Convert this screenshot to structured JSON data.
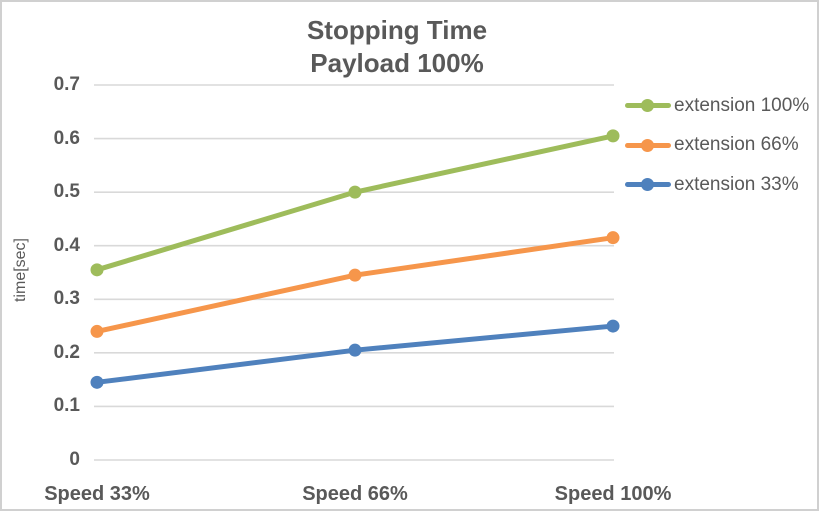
{
  "chart_data": {
    "type": "line",
    "title": "Stopping Time",
    "subtitle": "Payload 100%",
    "xlabel": "",
    "ylabel": "time[sec]",
    "categories": [
      "Speed 33%",
      "Speed 66%",
      "Speed 100%"
    ],
    "series": [
      {
        "name": "extension 100%",
        "color": "#9EBC5B",
        "values": [
          0.355,
          0.5,
          0.605
        ]
      },
      {
        "name": "extension 66%",
        "color": "#F6964B",
        "values": [
          0.24,
          0.345,
          0.415
        ]
      },
      {
        "name": "extension 33%",
        "color": "#4F81BD",
        "values": [
          0.145,
          0.205,
          0.25
        ]
      }
    ],
    "ylim": [
      0,
      0.7
    ],
    "yticks": [
      "0",
      "0.1",
      "0.2",
      "0.3",
      "0.4",
      "0.5",
      "0.6",
      "0.7"
    ],
    "grid": true,
    "legend_position": "right",
    "marker": "circle"
  },
  "colors": {
    "text": "#595959",
    "gridline": "#D9D9D9",
    "frame_border": "#D0D0D0",
    "background": "#FFFFFF"
  }
}
